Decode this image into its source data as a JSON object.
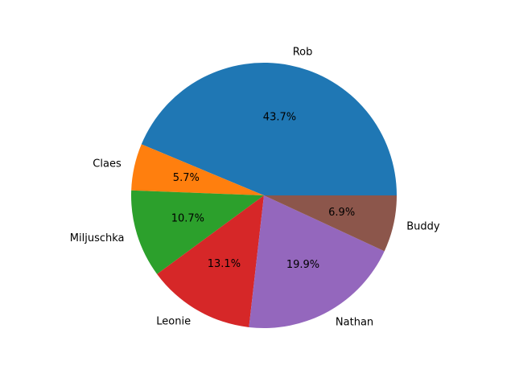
{
  "chart_data": {
    "type": "pie",
    "title": "",
    "start_angle_deg": 0,
    "direction": "counterclockwise",
    "slices": [
      {
        "label": "Rob",
        "value": 43.7,
        "pct_label": "43.7%",
        "color": "#1f77b4"
      },
      {
        "label": "Claes",
        "value": 5.7,
        "pct_label": "5.7%",
        "color": "#ff7f0e"
      },
      {
        "label": "Miljuschka",
        "value": 10.7,
        "pct_label": "10.7%",
        "color": "#2ca02c"
      },
      {
        "label": "Leonie",
        "value": 13.1,
        "pct_label": "13.1%",
        "color": "#d62728"
      },
      {
        "label": "Nathan",
        "value": 19.9,
        "pct_label": "19.9%",
        "color": "#9467bd"
      },
      {
        "label": "Buddy",
        "value": 6.9,
        "pct_label": "6.9%",
        "color": "#8c564b"
      }
    ]
  }
}
